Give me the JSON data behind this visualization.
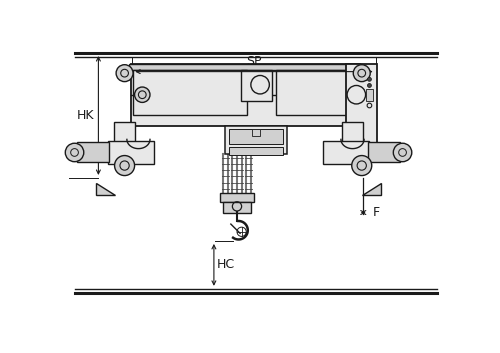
{
  "bg_color": "#ffffff",
  "lc": "#1a1a1a",
  "fg": "#d0d0d0",
  "fl": "#e8e8e8",
  "dg": "#444444",
  "mg": "#777777",
  "labels": {
    "SP": "SP",
    "HK": "HK",
    "HC": "HC",
    "F": "F"
  },
  "fig_width": 5.0,
  "fig_height": 3.53,
  "dpi": 100
}
